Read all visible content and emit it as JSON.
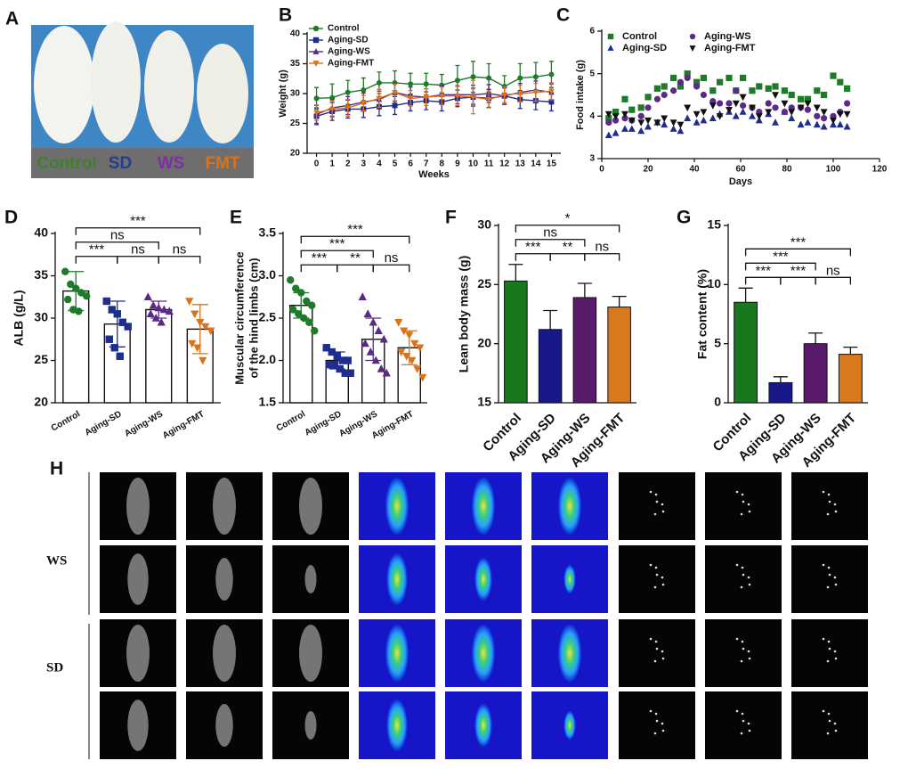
{
  "photo": {
    "panel": "A",
    "labels": [
      {
        "text": "Control",
        "color": "#3f7f2e"
      },
      {
        "text": "SD",
        "color": "#233f8c"
      },
      {
        "text": "WS",
        "color": "#7d2fa0"
      },
      {
        "text": "FMT",
        "color": "#d8741f"
      }
    ]
  },
  "chart_data": [
    {
      "type": "line",
      "panel": "B",
      "ylabel": "Weight (g)",
      "xlabel": "Weeks",
      "x": [
        0,
        1,
        2,
        3,
        4,
        5,
        6,
        7,
        8,
        9,
        10,
        11,
        12,
        13,
        14,
        15
      ],
      "xlim": [
        -0.6,
        15.6
      ],
      "xticks": [
        0,
        1,
        2,
        3,
        4,
        5,
        6,
        7,
        8,
        9,
        10,
        11,
        12,
        13,
        14,
        15
      ],
      "ylim": [
        20,
        40
      ],
      "yticks": [
        20,
        25,
        30,
        35,
        40
      ],
      "legend": "top-left",
      "legend_columns": 1,
      "series": [
        {
          "name": "Control",
          "color": "#1f7a2a",
          "marker": "circle",
          "values": [
            29.2,
            29.3,
            30.2,
            30.6,
            31.8,
            31.8,
            31.6,
            31.6,
            31.4,
            32.2,
            32.8,
            32.6,
            31.2,
            32.6,
            32.8,
            33.2
          ],
          "errors": [
            1.8,
            2.3,
            2.0,
            2.0,
            1.8,
            2.0,
            1.8,
            1.8,
            1.8,
            2.5,
            2.6,
            2.4,
            1.8,
            2.4,
            2.4,
            2.2
          ]
        },
        {
          "name": "Aging-SD",
          "color": "#1e2d8f",
          "marker": "square",
          "values": [
            26.2,
            27.0,
            27.4,
            27.4,
            27.8,
            28.0,
            28.5,
            28.8,
            28.6,
            29.2,
            29.4,
            29.2,
            29.6,
            29.0,
            28.8,
            28.6
          ],
          "errors": [
            1.4,
            1.5,
            1.5,
            1.4,
            1.5,
            1.5,
            1.4,
            1.5,
            1.5,
            1.4,
            1.5,
            1.5,
            1.4,
            1.5,
            1.5,
            1.5
          ]
        },
        {
          "name": "Aging-WS",
          "color": "#5b2a86",
          "marker": "triangle",
          "values": [
            26.5,
            27.6,
            28.0,
            28.6,
            29.0,
            30.2,
            29.6,
            29.4,
            29.8,
            29.8,
            29.8,
            30.0,
            29.6,
            30.2,
            30.6,
            30.2
          ],
          "errors": [
            1.5,
            1.4,
            1.5,
            1.5,
            1.4,
            1.5,
            1.5,
            1.4,
            1.5,
            1.5,
            1.6,
            1.5,
            1.4,
            1.5,
            1.5,
            1.4
          ]
        },
        {
          "name": "Aging-FMT",
          "color": "#d9731c",
          "marker": "triangle-down",
          "values": [
            26.8,
            27.4,
            27.6,
            28.4,
            29.2,
            30.2,
            29.2,
            29.4,
            29.6,
            29.6,
            29.4,
            29.0,
            29.8,
            30.0,
            30.2,
            30.4
          ],
          "errors": [
            1.3,
            1.4,
            1.4,
            1.3,
            1.5,
            1.4,
            1.3,
            1.4,
            1.5,
            1.6,
            2.8,
            1.4,
            1.3,
            1.4,
            1.5,
            1.4
          ]
        }
      ]
    },
    {
      "type": "scatter",
      "panel": "C",
      "ylabel": "Food intake (g)",
      "xlabel": "Days",
      "x": [
        3,
        6,
        10,
        13,
        17,
        20,
        24,
        27,
        31,
        34,
        37,
        41,
        44,
        48,
        51,
        55,
        58,
        61,
        65,
        68,
        72,
        75,
        79,
        82,
        86,
        89,
        93,
        96,
        100,
        103,
        106
      ],
      "xlim": [
        0,
        120
      ],
      "xticks": [
        0,
        20,
        40,
        60,
        80,
        100,
        120
      ],
      "ylim": [
        3,
        6
      ],
      "yticks": [
        3,
        4,
        5,
        6
      ],
      "legend": "top-left",
      "legend_columns": 2,
      "series": [
        {
          "name": "Control",
          "color": "#1f7a2a",
          "marker": "square",
          "values": [
            3.95,
            4.1,
            4.4,
            4.15,
            4.2,
            4.45,
            4.65,
            4.7,
            4.9,
            4.7,
            5.0,
            4.8,
            4.9,
            4.6,
            4.8,
            4.9,
            4.6,
            4.9,
            4.6,
            4.7,
            4.65,
            4.7,
            4.6,
            4.5,
            4.4,
            4.4,
            4.6,
            4.5,
            4.95,
            4.8,
            4.65
          ]
        },
        {
          "name": "Aging-SD",
          "color": "#1e2d8f",
          "marker": "triangle",
          "values": [
            3.55,
            3.6,
            3.7,
            3.7,
            3.65,
            3.75,
            3.85,
            3.8,
            3.7,
            3.65,
            3.95,
            3.85,
            3.9,
            3.95,
            4.05,
            4.1,
            4.0,
            4.1,
            4.0,
            3.9,
            4.05,
            3.85,
            4.1,
            3.95,
            3.8,
            3.85,
            3.8,
            3.75,
            3.8,
            3.8,
            3.75
          ]
        },
        {
          "name": "Aging-WS",
          "color": "#5b2a86",
          "marker": "circle",
          "values": [
            3.85,
            3.9,
            3.95,
            3.9,
            4.0,
            4.2,
            4.4,
            4.5,
            4.6,
            4.8,
            4.9,
            4.7,
            4.5,
            4.35,
            4.3,
            4.3,
            4.6,
            4.25,
            4.2,
            4.1,
            4.3,
            4.2,
            4.1,
            4.2,
            4.2,
            4.15,
            4.0,
            3.95,
            4.0,
            4.1,
            4.3
          ]
        },
        {
          "name": "Aging-FMT",
          "color": "#111111",
          "marker": "triangle-down",
          "values": [
            4.05,
            4.0,
            4.05,
            3.9,
            3.85,
            3.9,
            3.85,
            3.95,
            3.85,
            3.8,
            4.2,
            4.05,
            4.1,
            4.25,
            4.0,
            4.15,
            4.3,
            4.45,
            4.2,
            4.0,
            4.1,
            4.5,
            4.3,
            4.1,
            4.2,
            4.3,
            4.2,
            4.1,
            3.9,
            4.05,
            4.05
          ]
        }
      ]
    },
    {
      "type": "dot",
      "panel": "D",
      "ylabel": "ALB (g/L)",
      "categories": [
        "Control",
        "Aging-SD",
        "Aging-WS",
        "Aging-FMT"
      ],
      "colors": [
        "#1f7a2a",
        "#1e2d8f",
        "#5b2a86",
        "#d9731c"
      ],
      "markers": [
        "circle",
        "square",
        "triangle",
        "triangle-down"
      ],
      "ylim": [
        20,
        40
      ],
      "yticks": [
        20,
        25,
        30,
        35,
        40
      ],
      "values": [
        33.2,
        29.3,
        31.0,
        28.7
      ],
      "errors": [
        2.3,
        2.7,
        1.0,
        2.9
      ],
      "points": [
        [
          35.5,
          34,
          33.5,
          33,
          32.6,
          32.2,
          31,
          30.8
        ],
        [
          32,
          31,
          30.5,
          29.5,
          29,
          27.5,
          26.5,
          25.5
        ],
        [
          32.5,
          31.5,
          31.2,
          31,
          30.8,
          30.5,
          30,
          29.5
        ],
        [
          32,
          30.5,
          29.5,
          29,
          28.5,
          27,
          26.5,
          25
        ]
      ],
      "comparisons": [
        {
          "groups": [
            0,
            1
          ],
          "label": "***"
        },
        {
          "groups": [
            1,
            2
          ],
          "label": "ns"
        },
        {
          "groups": [
            2,
            3
          ],
          "label": "ns"
        },
        {
          "groups": [
            0,
            2
          ],
          "label": "ns"
        },
        {
          "groups": [
            0,
            3
          ],
          "label": "***"
        }
      ]
    },
    {
      "type": "dot",
      "panel": "E",
      "ylabel": [
        "Muscular circumference",
        "of the hind limbs (cm)"
      ],
      "categories": [
        "Control",
        "Aging-SD",
        "Aging-WS",
        "Aging-FMT"
      ],
      "colors": [
        "#1f7a2a",
        "#1e2d8f",
        "#5b2a86",
        "#d9731c"
      ],
      "markers": [
        "circle",
        "square",
        "triangle",
        "triangle-down"
      ],
      "ylim": [
        1.5,
        3.5
      ],
      "yticks": [
        1.5,
        {
          "value": 2,
          "label": "2.0"
        },
        2.5,
        {
          "value": 3,
          "label": "3.0"
        },
        3.5
      ],
      "values": [
        2.65,
        2.0,
        2.25,
        2.15
      ],
      "errors": [
        0.15,
        0.1,
        0.25,
        0.2
      ],
      "points": [
        [
          2.95,
          2.85,
          2.8,
          2.7,
          2.65,
          2.6,
          2.55,
          2.5,
          2.45,
          2.35
        ],
        [
          2.15,
          2.1,
          2.05,
          2.0,
          2.0,
          1.95,
          1.95,
          1.9,
          1.85,
          1.85
        ],
        [
          2.75,
          2.55,
          2.45,
          2.35,
          2.25,
          2.2,
          2.1,
          2.0,
          1.9,
          1.85
        ],
        [
          2.45,
          2.35,
          2.3,
          2.2,
          2.15,
          2.1,
          2.05,
          2.0,
          1.9,
          1.8
        ]
      ],
      "comparisons": [
        {
          "groups": [
            0,
            1
          ],
          "label": "***"
        },
        {
          "groups": [
            1,
            2
          ],
          "label": "**"
        },
        {
          "groups": [
            2,
            3
          ],
          "label": "ns"
        },
        {
          "groups": [
            0,
            2
          ],
          "label": "***"
        },
        {
          "groups": [
            0,
            3
          ],
          "label": "***"
        }
      ]
    },
    {
      "type": "bar",
      "panel": "F",
      "ylabel": "Lean body mass (g)",
      "categories": [
        "Control",
        "Aging-SD",
        "Aging-WS",
        "Aging-FMT"
      ],
      "colors": [
        "#17781d",
        "#18188a",
        "#5a1a6a",
        "#d9781c"
      ],
      "ylim": [
        15,
        30
      ],
      "yticks": [
        15,
        20,
        25,
        30
      ],
      "values": [
        25.3,
        21.2,
        23.9,
        23.1
      ],
      "errors": [
        1.4,
        1.6,
        1.2,
        0.9
      ],
      "comparisons": [
        {
          "groups": [
            0,
            1
          ],
          "label": "***"
        },
        {
          "groups": [
            1,
            2
          ],
          "label": "**"
        },
        {
          "groups": [
            2,
            3
          ],
          "label": "ns"
        },
        {
          "groups": [
            0,
            2
          ],
          "label": "ns"
        },
        {
          "groups": [
            0,
            3
          ],
          "label": "*"
        }
      ]
    },
    {
      "type": "bar",
      "panel": "G",
      "ylabel": "Fat content (%)",
      "categories": [
        "Control",
        "Aging-SD",
        "Aging-WS",
        "Aging-FMT"
      ],
      "colors": [
        "#17781d",
        "#18188a",
        "#5a1a6a",
        "#d9781c"
      ],
      "ylim": [
        0,
        15
      ],
      "yticks": [
        0,
        5,
        10,
        15
      ],
      "values": [
        8.5,
        1.7,
        5.0,
        4.1
      ],
      "errors": [
        1.2,
        0.5,
        0.9,
        0.6
      ],
      "comparisons": [
        {
          "groups": [
            0,
            1
          ],
          "label": "***"
        },
        {
          "groups": [
            1,
            2
          ],
          "label": "***"
        },
        {
          "groups": [
            2,
            3
          ],
          "label": "ns"
        },
        {
          "groups": [
            0,
            2
          ],
          "label": "***"
        },
        {
          "groups": [
            0,
            3
          ],
          "label": "***"
        }
      ]
    }
  ],
  "imaging": {
    "panel": "H",
    "row_labels": [
      "WS",
      "SD"
    ]
  }
}
